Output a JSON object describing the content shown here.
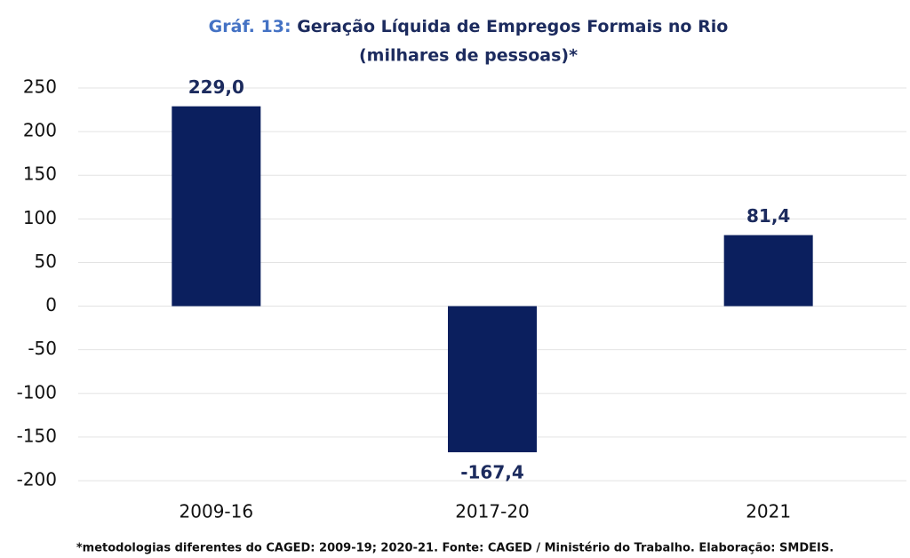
{
  "chart_data": {
    "type": "bar",
    "title_label": "Gráf. 13:",
    "title": "Geração Líquida de Empregos Formais no Rio",
    "subtitle": "(milhares de pessoas)*",
    "categories": [
      "2009-16",
      "2017-20",
      "2021"
    ],
    "values": [
      229.0,
      -167.4,
      81.4
    ],
    "value_labels": [
      "229,0",
      "-167,4",
      "81,4"
    ],
    "color": "#0b1f5e",
    "ylim": [
      -200,
      250
    ],
    "yticks": [
      -200,
      -150,
      -100,
      -50,
      0,
      50,
      100,
      150,
      200,
      250
    ],
    "grid": true,
    "note": "*metodologias diferentes do CAGED: 2009-19; 2020-21. Fonte: CAGED / Ministério do Trabalho. Elaboração: SMDEIS."
  }
}
